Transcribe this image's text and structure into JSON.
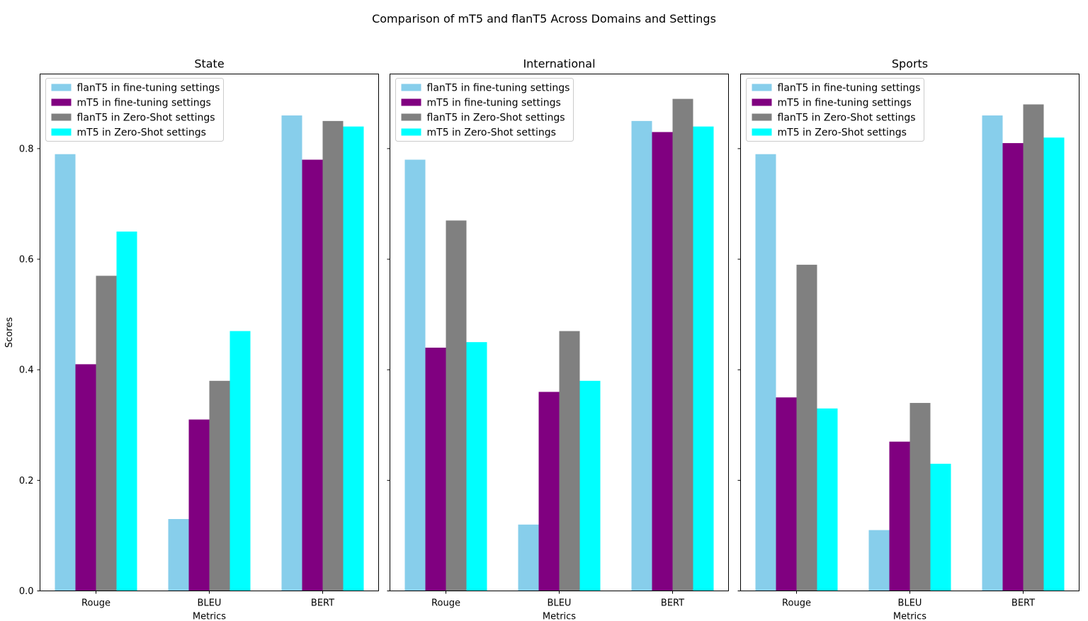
{
  "title": "Comparison of mT5 and flanT5 Across Domains and Settings",
  "chart_data": [
    {
      "type": "bar",
      "title": "State",
      "categories": [
        "Rouge",
        "BLEU",
        "BERT"
      ],
      "xlabel": "Metrics",
      "ylabel": "Scores",
      "ylim": [
        0,
        0.935
      ],
      "yticks": [
        "0.0",
        "0.2",
        "0.4",
        "0.6",
        "0.8"
      ],
      "legend_position": "upper-left",
      "series": [
        {
          "name": "flanT5 in fine-tuning settings",
          "color": "#87ceeb",
          "values": [
            0.79,
            0.13,
            0.86
          ]
        },
        {
          "name": "mT5 in fine-tuning settings",
          "color": "#800080",
          "values": [
            0.41,
            0.31,
            0.78
          ]
        },
        {
          "name": "flanT5 in Zero-Shot settings",
          "color": "#808080",
          "values": [
            0.57,
            0.38,
            0.85
          ]
        },
        {
          "name": "mT5 in Zero-Shot settings",
          "color": "#00ffff",
          "values": [
            0.65,
            0.47,
            0.84
          ]
        }
      ]
    },
    {
      "type": "bar",
      "title": "International",
      "categories": [
        "Rouge",
        "BLEU",
        "BERT"
      ],
      "xlabel": "Metrics",
      "ylabel": "",
      "ylim": [
        0,
        0.935
      ],
      "yticks": [
        "",
        "",
        "",
        "",
        ""
      ],
      "legend_position": "upper-left",
      "series": [
        {
          "name": "flanT5 in fine-tuning settings",
          "color": "#87ceeb",
          "values": [
            0.78,
            0.12,
            0.85
          ]
        },
        {
          "name": "mT5 in fine-tuning settings",
          "color": "#800080",
          "values": [
            0.44,
            0.36,
            0.83
          ]
        },
        {
          "name": "flanT5 in Zero-Shot settings",
          "color": "#808080",
          "values": [
            0.67,
            0.47,
            0.89
          ]
        },
        {
          "name": "mT5 in Zero-Shot settings",
          "color": "#00ffff",
          "values": [
            0.45,
            0.38,
            0.84
          ]
        }
      ]
    },
    {
      "type": "bar",
      "title": "Sports",
      "categories": [
        "Rouge",
        "BLEU",
        "BERT"
      ],
      "xlabel": "Metrics",
      "ylabel": "",
      "ylim": [
        0,
        0.935
      ],
      "yticks": [
        "",
        "",
        "",
        "",
        ""
      ],
      "legend_position": "upper-left",
      "series": [
        {
          "name": "flanT5 in fine-tuning settings",
          "color": "#87ceeb",
          "values": [
            0.79,
            0.11,
            0.86
          ]
        },
        {
          "name": "mT5 in fine-tuning settings",
          "color": "#800080",
          "values": [
            0.35,
            0.27,
            0.81
          ]
        },
        {
          "name": "flanT5 in Zero-Shot settings",
          "color": "#808080",
          "values": [
            0.59,
            0.34,
            0.88
          ]
        },
        {
          "name": "mT5 in Zero-Shot settings",
          "color": "#00ffff",
          "values": [
            0.33,
            0.23,
            0.82
          ]
        }
      ]
    }
  ]
}
